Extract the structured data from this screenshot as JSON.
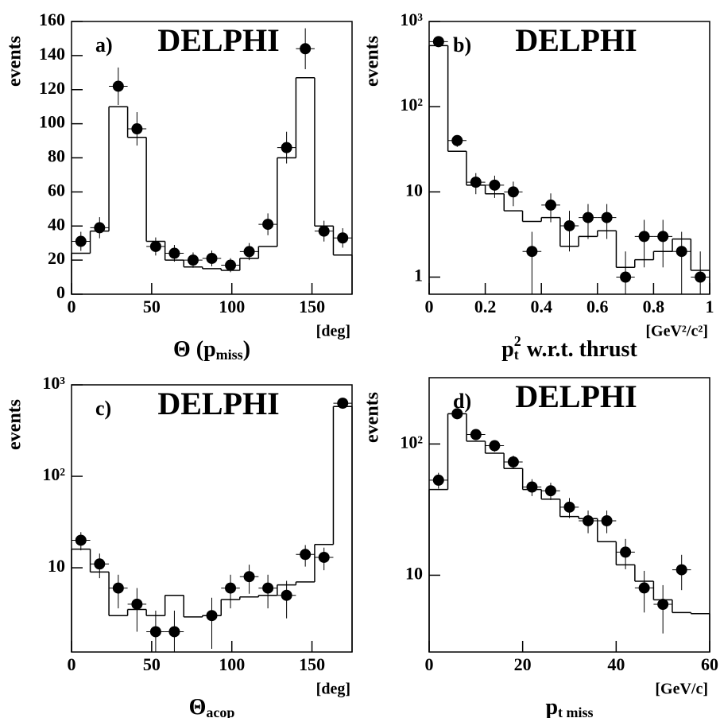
{
  "chart_data": [
    {
      "type": "histogram",
      "panel": "a)",
      "title": "DELPHI",
      "ylabel": "events",
      "xlabel": [
        "Θ (p",
        "miss",
        ")"
      ],
      "xunit": "[deg]",
      "bins": [
        0,
        11.67,
        23.33,
        35,
        46.67,
        58.33,
        70,
        81.67,
        93.33,
        105,
        116.67,
        128.33,
        140,
        151.67,
        163.33,
        175
      ],
      "counts": [
        24,
        37,
        110,
        92,
        31,
        20,
        16,
        15,
        14,
        21,
        28,
        80,
        127,
        40,
        23
      ],
      "values": [
        31,
        39,
        122,
        97,
        28,
        24,
        20,
        21,
        17,
        25,
        41,
        86,
        144,
        37,
        33
      ],
      "errors": [
        5.6,
        6.2,
        11,
        9.8,
        5.3,
        4.9,
        4.5,
        4.6,
        4.1,
        5,
        6.4,
        9.3,
        12,
        6.1,
        5.7
      ],
      "color": "#000000",
      "log": false,
      "xlim": [
        0,
        175
      ],
      "xticks": [
        0,
        50,
        100,
        150
      ],
      "ylim": [
        0,
        160
      ],
      "yticks": [
        0,
        20,
        40,
        60,
        80,
        100,
        120,
        140,
        160
      ]
    },
    {
      "type": "histogram",
      "panel": "b)",
      "title": "DELPHI",
      "ylabel": "events",
      "xlabel": [
        "p",
        "t",
        "2",
        " w.r.t. thrust"
      ],
      "xunit": "[GeV²/c²]",
      "bins": [
        0,
        0.067,
        0.133,
        0.2,
        0.267,
        0.333,
        0.4,
        0.467,
        0.533,
        0.6,
        0.667,
        0.733,
        0.8,
        0.867,
        0.933,
        1
      ],
      "counts": [
        520,
        30,
        12,
        9.5,
        6,
        4.5,
        5,
        2.3,
        3,
        3.5,
        1.3,
        1.6,
        2,
        2.8,
        1.2
      ],
      "values": [
        580,
        40,
        13,
        12,
        10,
        2,
        7,
        4,
        5,
        5,
        1,
        3,
        3,
        2,
        1
      ],
      "errors": [
        24,
        6.3,
        3.6,
        3.5,
        3.2,
        1.4,
        2.6,
        2,
        2.2,
        2.2,
        1,
        1.7,
        1.7,
        1.4,
        1
      ],
      "color": "#000000",
      "log": true,
      "xlim": [
        0,
        1
      ],
      "xticks": [
        0,
        0.2,
        0.4,
        0.6,
        0.8,
        1
      ],
      "ylim": [
        0.63,
        1000
      ],
      "yticks": [
        1,
        10,
        {
          "value": 100,
          "label": "10²"
        },
        {
          "value": 1000,
          "label": "10³"
        }
      ]
    },
    {
      "type": "histogram",
      "panel": "c)",
      "title": "DELPHI",
      "ylabel": "events",
      "xlabel": [
        "Θ",
        "acop"
      ],
      "xunit": "[deg]",
      "bins": [
        0,
        11.67,
        23.33,
        35,
        46.67,
        58.33,
        70,
        81.67,
        93.33,
        105,
        116.67,
        128.33,
        140,
        151.67,
        163.33,
        175
      ],
      "counts": [
        16,
        9,
        3,
        3.5,
        3,
        5,
        2.9,
        3,
        4.5,
        4.8,
        5,
        6.5,
        7,
        18,
        580
      ],
      "values": [
        20,
        11,
        6,
        4,
        2,
        2,
        null,
        3,
        6,
        8,
        6,
        5,
        14,
        13,
        630
      ],
      "errors": [
        4.5,
        3.3,
        2.4,
        2,
        1.4,
        1.4,
        null,
        1.7,
        2.4,
        2.8,
        2.4,
        2.2,
        3.7,
        3.6,
        25
      ],
      "color": "#000000",
      "log": true,
      "xlim": [
        0,
        175
      ],
      "xticks": [
        0,
        50,
        100,
        150
      ],
      "ylim": [
        1.2,
        1000
      ],
      "yticks": [
        10,
        {
          "value": 100,
          "label": "10²"
        },
        {
          "value": 1000,
          "label": "10³"
        }
      ]
    },
    {
      "type": "histogram",
      "panel": "d)",
      "title": "DELPHI",
      "ylabel": "events",
      "xlabel": [
        "p",
        "t miss"
      ],
      "xunit": "[GeV/c]",
      "bins": [
        0,
        4,
        8,
        12,
        16,
        20,
        24,
        28,
        32,
        36,
        40,
        44,
        48,
        52,
        56,
        60
      ],
      "counts": [
        45,
        170,
        105,
        85,
        65,
        45,
        38,
        28,
        27,
        18,
        12,
        9,
        6.5,
        5.2,
        5.1
      ],
      "values": [
        53,
        170,
        118,
        97,
        73,
        47,
        44,
        33,
        26,
        26,
        15,
        8,
        6,
        11,
        null
      ],
      "errors": [
        7.3,
        13,
        10.9,
        9.8,
        8.5,
        6.9,
        6.6,
        5.7,
        5.1,
        5.1,
        3.9,
        2.8,
        2.4,
        3.3,
        null
      ],
      "color": "#000000",
      "log": true,
      "xlim": [
        0,
        60
      ],
      "xticks": [
        0,
        20,
        40,
        60
      ],
      "ylim": [
        2.6,
        320
      ],
      "yticks": [
        10,
        {
          "value": 100,
          "label": "10²"
        }
      ]
    }
  ]
}
